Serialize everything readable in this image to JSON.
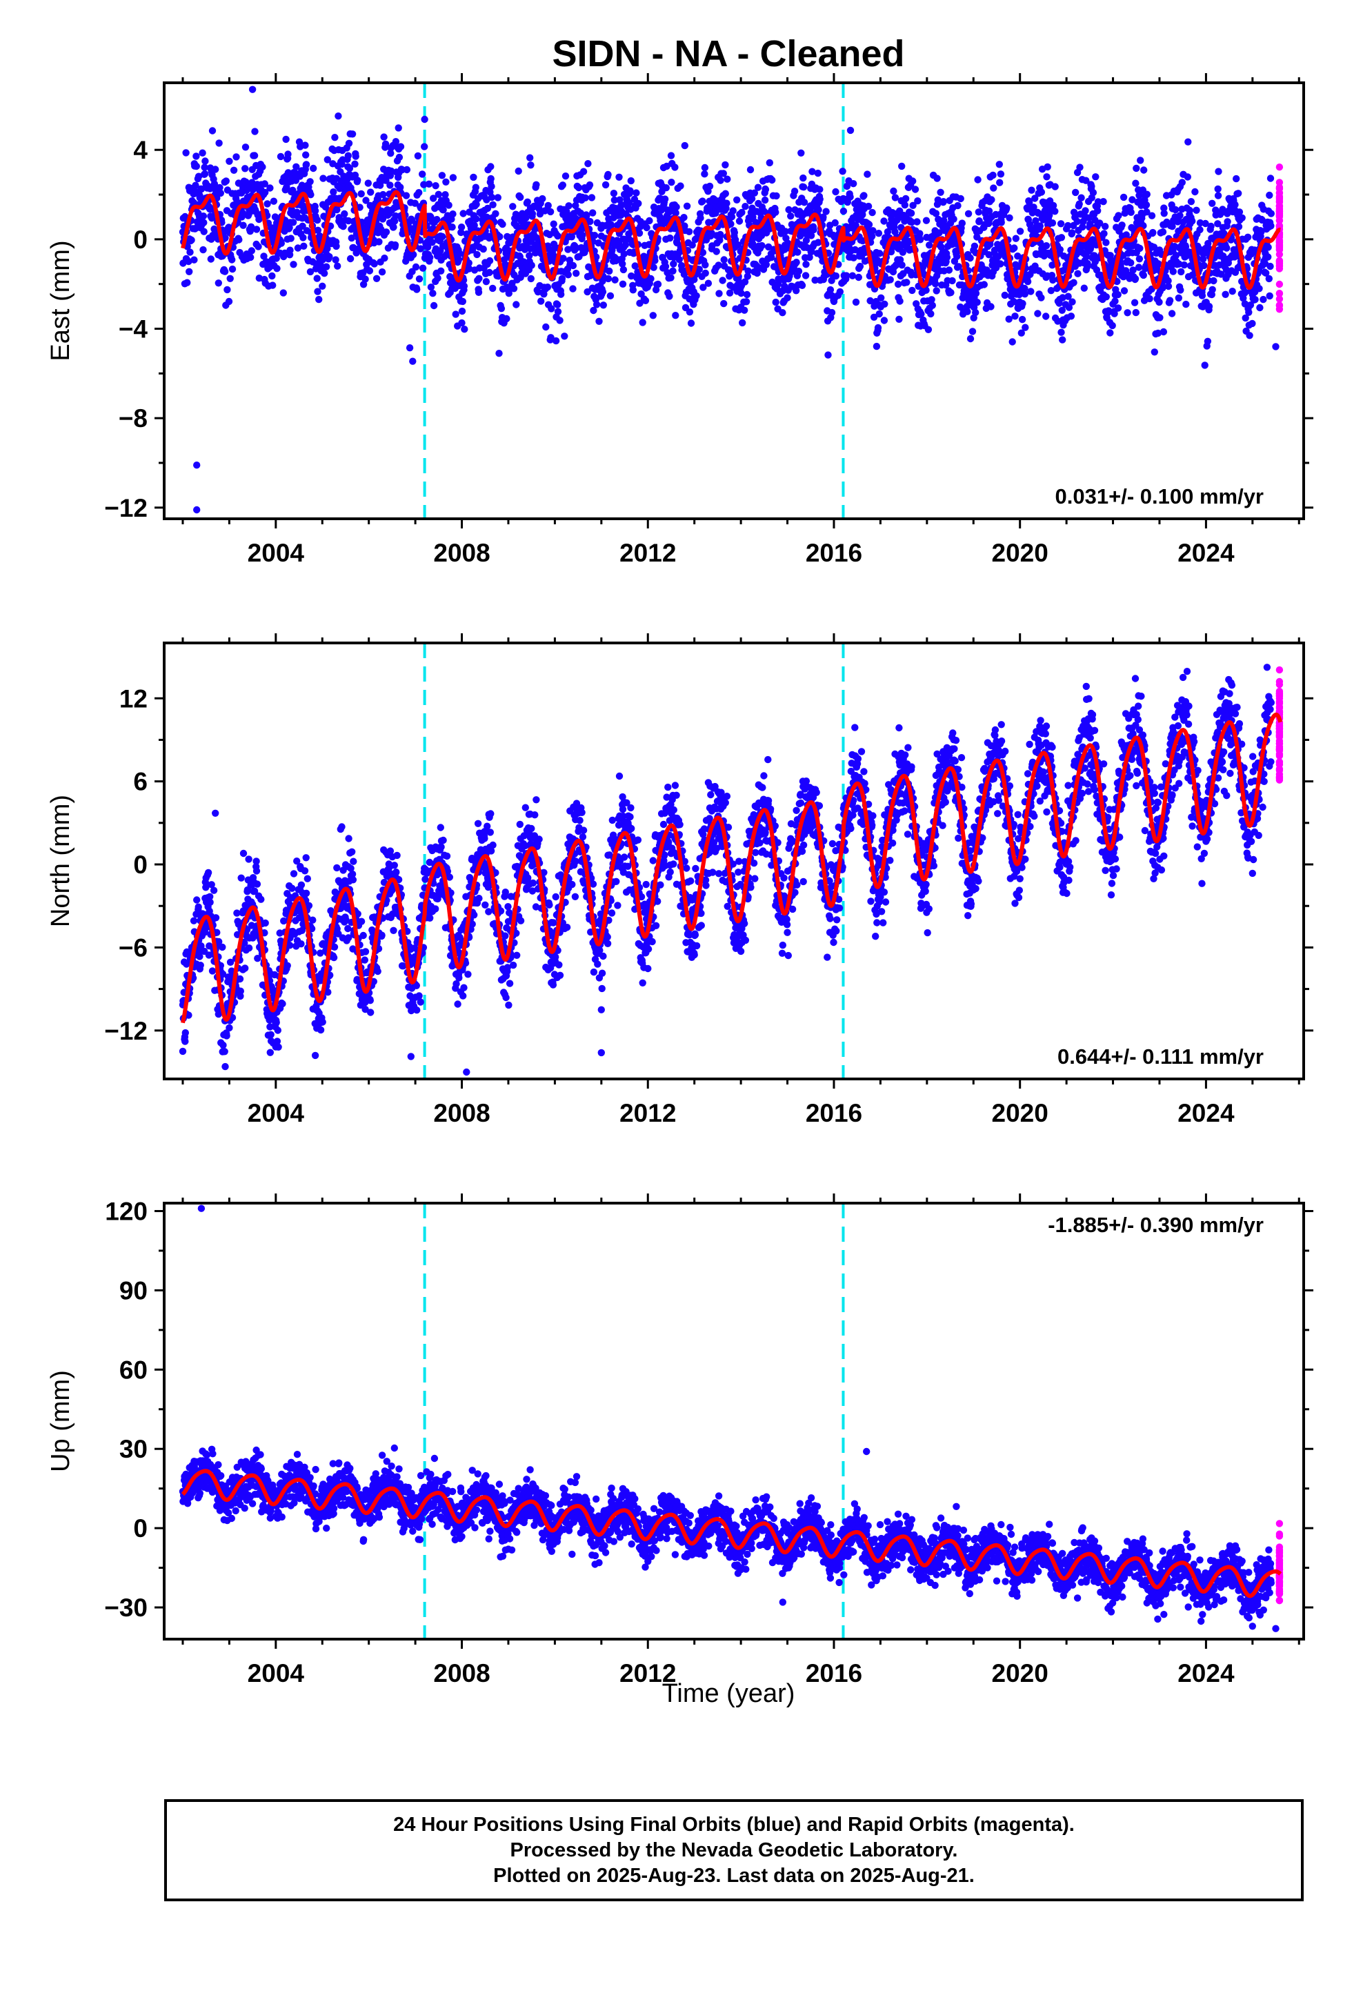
{
  "title": "SIDN  - NA - Cleaned",
  "xlabel": "Time (year)",
  "colors": {
    "final_orbits": "#1a00ff",
    "rapid_orbits": "#ff00ff",
    "model": "#ff0000",
    "offset_lines": "#00e5ee",
    "axes": "#000000"
  },
  "footer": {
    "line1": "24 Hour Positions Using Final Orbits (blue) and Rapid Orbits (magenta).",
    "line2": "Processed by the Nevada Geodetic Laboratory.",
    "line3": "Plotted on 2025-Aug-23. Last data on 2025-Aug-21."
  },
  "chart_data": [
    {
      "type": "scatter",
      "component": "East",
      "ylabel": "East (mm)",
      "xlim": [
        2001.6,
        2026.1
      ],
      "ylim": [
        -12.5,
        7.0
      ],
      "yticks": [
        -12,
        -8,
        -4,
        0,
        4
      ],
      "xticks": [
        2004,
        2008,
        2012,
        2016,
        2020,
        2024
      ],
      "velocity_label": "0.031+/- 0.100 mm/yr",
      "velocity_label_position": "bottom-right",
      "offset_epochs": [
        2007.2,
        2016.2
      ],
      "data_start": 2002.0,
      "data_end": 2025.6,
      "rapid_start": 2025.4,
      "model_segments": [
        {
          "x_start": 2002.0,
          "x_end": 2007.2,
          "y_start": 0.9,
          "y_end": 1.1,
          "annual_amplitude": 1.1,
          "semiannual_amplitude": 0.5
        },
        {
          "x_start": 2007.2,
          "x_end": 2016.2,
          "y_start": -0.3,
          "y_end": 0.1,
          "annual_amplitude": 1.1,
          "semiannual_amplitude": 0.5
        },
        {
          "x_start": 2016.2,
          "x_end": 2025.6,
          "y_start": -0.5,
          "y_end": -0.6,
          "annual_amplitude": 1.1,
          "semiannual_amplitude": 0.5
        }
      ],
      "scatter_sd": 1.3,
      "outliers": [
        {
          "x": 2002.3,
          "y": -10.1
        },
        {
          "x": 2002.3,
          "y": -12.1
        },
        {
          "x": 2003.5,
          "y": 6.7
        },
        {
          "x": 2008.8,
          "y": -5.1
        },
        {
          "x": 2025.5,
          "y": -4.8
        }
      ]
    },
    {
      "type": "scatter",
      "component": "North",
      "ylabel": "North (mm)",
      "xlim": [
        2001.6,
        2026.1
      ],
      "ylim": [
        -15.5,
        16.0
      ],
      "yticks": [
        -12,
        -6,
        0,
        6,
        12
      ],
      "xticks": [
        2004,
        2008,
        2012,
        2016,
        2020,
        2024
      ],
      "velocity_label": "0.644+/- 0.111 mm/yr",
      "velocity_label_position": "bottom-right",
      "offset_epochs": [
        2007.2,
        2016.2
      ],
      "data_start": 2002.0,
      "data_end": 2025.6,
      "rapid_start": 2025.4,
      "model_segments": [
        {
          "x_start": 2002.0,
          "x_end": 2007.2,
          "y_start": -7.5,
          "y_end": -4.0,
          "annual_amplitude": 3.8,
          "semiannual_amplitude": 0.6
        },
        {
          "x_start": 2007.2,
          "x_end": 2016.2,
          "y_start": -3.5,
          "y_end": 1.5,
          "annual_amplitude": 3.8,
          "semiannual_amplitude": 0.6
        },
        {
          "x_start": 2016.2,
          "x_end": 2025.6,
          "y_start": 2.3,
          "y_end": 7.5,
          "annual_amplitude": 3.8,
          "semiannual_amplitude": 0.6
        }
      ],
      "scatter_sd": 1.6,
      "outliers": [
        {
          "x": 2002.7,
          "y": 3.7
        },
        {
          "x": 2002.0,
          "y": -13.5
        },
        {
          "x": 2008.1,
          "y": -15.0
        },
        {
          "x": 2011.0,
          "y": -13.6
        },
        {
          "x": 2011.0,
          "y": -10.5
        }
      ]
    },
    {
      "type": "scatter",
      "component": "Up",
      "ylabel": "Up (mm)",
      "xlim": [
        2001.6,
        2026.1
      ],
      "ylim": [
        -42.0,
        123.0
      ],
      "yticks": [
        -30,
        0,
        30,
        60,
        90,
        120
      ],
      "xticks": [
        2004,
        2008,
        2012,
        2016,
        2020,
        2024
      ],
      "velocity_label": "-1.885+/- 0.390 mm/yr",
      "velocity_label_position": "top-right",
      "offset_epochs": [
        2007.2,
        2016.2
      ],
      "data_start": 2002.0,
      "data_end": 2025.6,
      "rapid_start": 2025.4,
      "model_segments": [
        {
          "x_start": 2002.0,
          "x_end": 2025.6,
          "y_start": 18.0,
          "y_end": -21.0,
          "annual_amplitude": 5.0,
          "semiannual_amplitude": 0.8
        }
      ],
      "scatter_sd": 4.5,
      "outliers": [
        {
          "x": 2002.4,
          "y": 121.0
        },
        {
          "x": 2016.7,
          "y": 29.0
        },
        {
          "x": 2014.9,
          "y": -28.0
        },
        {
          "x": 2025.5,
          "y": -38.0
        }
      ]
    }
  ]
}
